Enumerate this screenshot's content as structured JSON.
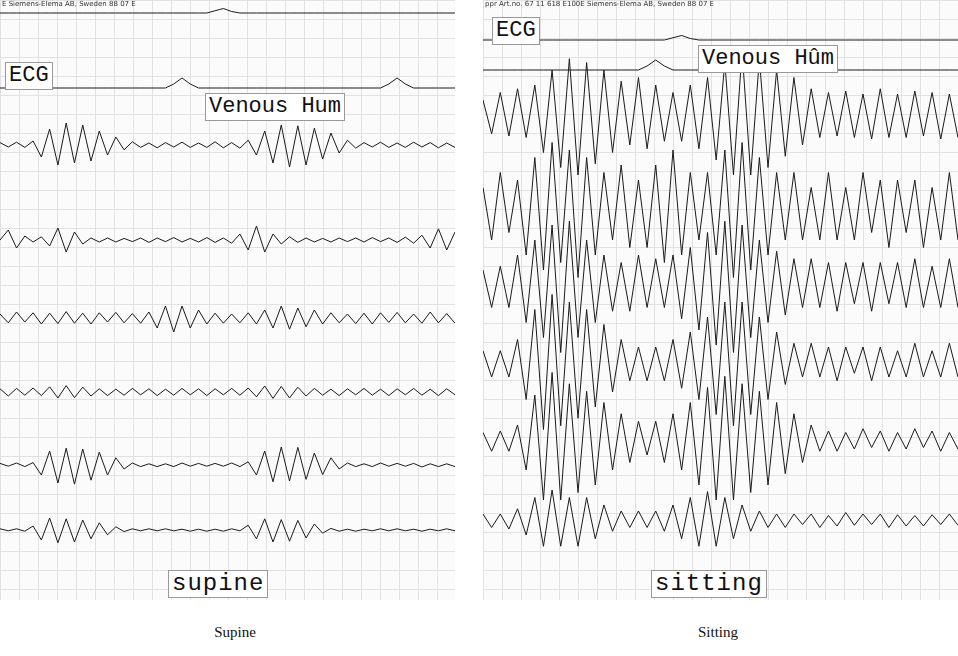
{
  "chart_data": [
    {
      "type": "line",
      "header": "E Siemens-Elema AB, Sweden   88 07 E",
      "title": "supine",
      "subtitle": "Supine",
      "annotations": [
        "ECG",
        "Venous Hum"
      ],
      "ylim": [
        -10,
        10
      ],
      "tick_labels": false,
      "grid": true,
      "color": "#1a1a1a",
      "series": [
        {
          "values": [
            0,
            0,
            0,
            0,
            0,
            0,
            0,
            0,
            0,
            0,
            0,
            0,
            0,
            0,
            0,
            0,
            0,
            0,
            0,
            0,
            0,
            0,
            0,
            0,
            0,
            0,
            1.5,
            3,
            1,
            0,
            0,
            0,
            0,
            0,
            0,
            0,
            0,
            0,
            0,
            0,
            0,
            0,
            0,
            0,
            0,
            0,
            0,
            0,
            0,
            0,
            0,
            0,
            0,
            0,
            0,
            0
          ]
        },
        {
          "values": [
            0,
            0,
            0,
            0,
            0,
            0,
            0,
            0,
            0,
            0,
            0,
            0,
            0,
            0,
            0,
            0,
            0,
            0,
            0,
            0,
            0,
            2,
            5,
            2,
            0,
            0,
            0,
            0,
            0,
            0,
            0,
            0,
            0,
            0,
            0,
            0,
            0,
            0,
            0,
            0,
            0,
            0,
            0,
            0,
            0,
            0,
            0,
            2,
            5,
            2,
            0,
            0,
            0,
            0,
            0,
            0
          ]
        },
        {
          "values": [
            0.6,
            -0.5,
            0.7,
            -0.6,
            1,
            -3,
            4,
            -5,
            5.5,
            -4.5,
            5,
            -4,
            3.5,
            -2.5,
            2,
            -1.2,
            0.8,
            -0.6,
            0.5,
            -0.7,
            0.6,
            -0.5,
            0.7,
            -0.6,
            0.5,
            -0.6,
            0.8,
            -0.7,
            0.6,
            -0.8,
            1.2,
            -2.5,
            3.5,
            -4.5,
            5,
            -5.5,
            4.8,
            -5,
            4.2,
            -3.5,
            3,
            -2,
            1.2,
            -0.8,
            0.6,
            -0.5,
            0.7,
            -0.6,
            0.5,
            -0.6,
            0.7,
            -0.5,
            0.6,
            -0.7,
            0.5,
            -0.6
          ]
        },
        {
          "values": [
            0,
            2.5,
            -2,
            1,
            -0.5,
            0.8,
            -1.5,
            3,
            -3,
            2,
            -1,
            0.5,
            -0.5,
            0.5,
            -0.5,
            0.4,
            -0.4,
            0.5,
            -0.6,
            0.5,
            -0.4,
            0.6,
            -0.5,
            0.4,
            -0.5,
            0.6,
            -0.6,
            0.5,
            -0.8,
            1.5,
            -2.5,
            3.5,
            -3,
            1.5,
            -1,
            0.8,
            -0.6,
            0.5,
            -0.5,
            0.4,
            -0.5,
            0.5,
            -0.4,
            0.5,
            -0.5,
            0.6,
            -0.4,
            0.5,
            -0.6,
            0.7,
            -0.8,
            1.2,
            -2,
            2.8,
            -2.5,
            2
          ]
        },
        {
          "values": [
            1,
            -1.2,
            1.5,
            -1,
            1.3,
            -1.5,
            1.2,
            -1.4,
            1.6,
            -1.3,
            1.2,
            -1.5,
            1.3,
            -1,
            1.4,
            -1.2,
            1.1,
            -1.3,
            1.5,
            -2.5,
            3,
            -3.5,
            3,
            -2.5,
            2,
            -1.5,
            1.2,
            -1.3,
            1,
            -1.2,
            1.3,
            -1.5,
            2,
            -2.5,
            3,
            -2.8,
            2.5,
            -2.2,
            2,
            -1.5,
            1.3,
            -1.2,
            1,
            -1.4,
            1.2,
            -1.5,
            1.3,
            -1.1,
            1.4,
            -1.2,
            1,
            -1.3,
            1.5,
            -1.2,
            1.1,
            -1.3
          ]
        },
        {
          "values": [
            0.8,
            -1,
            0.9,
            -0.8,
            1,
            -0.9,
            1.3,
            -1.5,
            1.6,
            -1.4,
            1.2,
            -1,
            0.8,
            -0.9,
            0.7,
            -0.8,
            0.9,
            -0.7,
            0.8,
            -0.9,
            0.7,
            -0.8,
            0.9,
            -0.7,
            0.8,
            -0.9,
            0.8,
            -0.7,
            0.9,
            -0.8,
            1,
            -1.2,
            1.5,
            -1.6,
            1.4,
            -1.5,
            1.2,
            -1,
            0.9,
            -0.8,
            0.7,
            -0.9,
            0.8,
            -0.7,
            0.9,
            -0.8,
            0.7,
            -0.9,
            0.8,
            -0.7,
            0.9,
            -0.8,
            0.7,
            -0.9,
            0.8,
            -0.7
          ]
        },
        {
          "values": [
            0.4,
            -0.3,
            0.5,
            -0.4,
            0.6,
            -2.5,
            3.5,
            -4.5,
            4.2,
            -4.8,
            4,
            -3.8,
            3.2,
            -2.5,
            1.8,
            -1,
            0.5,
            -0.4,
            0.3,
            -0.4,
            0.3,
            -0.4,
            0.5,
            -0.3,
            0.4,
            -0.3,
            0.4,
            -0.3,
            0.5,
            -0.4,
            0.8,
            -2.5,
            3.5,
            -4.2,
            4.5,
            -4,
            4.4,
            -3.6,
            3,
            -2.4,
            1.8,
            -1,
            0.5,
            -0.4,
            0.3,
            -0.4,
            0.5,
            -0.3,
            0.4,
            -0.3,
            0.4,
            -0.5,
            0.3,
            -0.4,
            0.3,
            -0.4
          ]
        },
        {
          "values": [
            0.3,
            -0.2,
            0.3,
            -0.3,
            1,
            -2.5,
            3,
            -3.2,
            2.8,
            -3,
            2.5,
            -2.2,
            1.8,
            -1.2,
            0.8,
            -0.4,
            0.3,
            -0.2,
            0.3,
            -0.2,
            0.3,
            -0.2,
            0.2,
            -0.3,
            0.2,
            -0.3,
            0.2,
            -0.3,
            0.3,
            -0.2,
            1.2,
            -2.2,
            2.8,
            -3,
            2.6,
            -2.8,
            2.4,
            -2,
            1.5,
            -0.8,
            0.4,
            -0.3,
            0.2,
            -0.3,
            0.2,
            -0.2,
            0.3,
            -0.2,
            0.3,
            -0.2,
            0.2,
            -0.3,
            0.2,
            -0.2,
            0.3,
            -0.2
          ]
        }
      ]
    },
    {
      "type": "line",
      "header": "ppr Art.no. 67 11 618 E100E Siemens-Elema AB, Sweden   88 07 E",
      "title": "sitting",
      "subtitle": "Sitting",
      "annotations": [
        "ECG",
        "Venous Hûm"
      ],
      "ylim": [
        -10,
        10
      ],
      "tick_labels": false,
      "grid": true,
      "color": "#1a1a1a",
      "series": [
        {
          "values": [
            0,
            0,
            0,
            0,
            0,
            0,
            0,
            0,
            0,
            0,
            0,
            0,
            0,
            0,
            0,
            0,
            0,
            0,
            0,
            0,
            0,
            0,
            1.5,
            3,
            1,
            0,
            0,
            0,
            0,
            0,
            0,
            0,
            0,
            0,
            0,
            0,
            0,
            0,
            0,
            0,
            0,
            0,
            0,
            0,
            0,
            0,
            0,
            0,
            0,
            0,
            0,
            0,
            0,
            0,
            0,
            0
          ]
        },
        {
          "values": [
            0,
            0,
            0,
            0,
            0,
            0,
            0,
            0,
            0,
            0,
            0,
            0,
            0,
            0,
            0,
            0,
            0,
            0,
            0,
            2,
            5,
            2,
            0,
            0,
            0,
            0,
            0,
            0,
            0,
            0,
            0,
            0,
            0,
            0,
            0,
            0,
            0,
            0,
            0,
            0,
            0,
            0,
            0,
            0,
            0,
            0,
            0,
            0,
            0,
            0,
            0,
            0,
            0,
            0,
            0,
            0
          ]
        },
        {
          "values": [
            2,
            -2.5,
            3,
            -2.8,
            3.5,
            -3,
            4,
            -5,
            6,
            -7,
            7.5,
            -8,
            7,
            -6.5,
            6,
            -5,
            4.5,
            -4,
            5,
            -4.5,
            4,
            -3.5,
            3,
            -3.5,
            4,
            -4.5,
            5,
            -6,
            7,
            -8,
            8.5,
            -8,
            7.5,
            -7,
            6,
            -5.5,
            5,
            -4,
            3.5,
            -3,
            3,
            -2.8,
            3.2,
            -3,
            2.8,
            -3.2,
            3.5,
            -3,
            2.8,
            -3,
            3.2,
            -2.8,
            3,
            -3.2,
            2.8,
            -3
          ]
        },
        {
          "values": [
            3,
            -4,
            5,
            -3,
            4,
            -6,
            7,
            -8,
            9,
            -7,
            8,
            -9,
            7,
            -6,
            5,
            -4,
            6,
            -5,
            4,
            -5,
            6,
            -7,
            8,
            -6,
            5,
            -4,
            5,
            -6,
            8,
            -9,
            9,
            -8,
            7,
            -6,
            5,
            -4,
            5,
            -4,
            3,
            -4,
            5,
            -4,
            3,
            -4,
            5,
            -3,
            4,
            -5,
            4,
            -3,
            4,
            -5,
            3,
            -4,
            5,
            -4
          ]
        },
        {
          "values": [
            2,
            -3,
            2.5,
            -3,
            4,
            -5,
            6,
            -7,
            8,
            -9,
            8.5,
            -7,
            6,
            -5,
            4,
            -3.5,
            3,
            -3.5,
            4,
            -3,
            3.5,
            -3,
            4,
            -4.5,
            5,
            -6,
            7,
            -8,
            8.5,
            -9,
            8,
            -7,
            6,
            -5,
            4.5,
            -4,
            3.5,
            -3,
            3.5,
            -3,
            3,
            -3.5,
            3,
            -2.5,
            3,
            -3.5,
            3,
            -2.5,
            3,
            -3,
            3.5,
            -3,
            2.5,
            -3,
            3.5,
            -3
          ]
        },
        {
          "values": [
            1.5,
            -2,
            1.5,
            -2,
            3,
            -5,
            7,
            -9,
            9,
            -8.5,
            8,
            -7.5,
            7,
            -6,
            5,
            -4,
            3,
            -2.5,
            2,
            -2.5,
            2,
            -2.5,
            3,
            -3.5,
            4,
            -5,
            6,
            -7,
            8,
            -8.5,
            8,
            -7,
            6,
            -5,
            4,
            -3,
            2.5,
            -2,
            2.5,
            -2,
            2,
            -2.5,
            2,
            -1.5,
            2,
            -2.5,
            2,
            -2,
            1.5,
            -2,
            2.5,
            -2,
            1.5,
            -2,
            2.5,
            -2
          ]
        },
        {
          "values": [
            1,
            -1.5,
            1.2,
            -1.5,
            2,
            -4,
            6,
            -8,
            9,
            -8,
            7.5,
            -7,
            6.5,
            -6,
            5,
            -4,
            3.5,
            -3,
            2.5,
            -2,
            2.5,
            -3,
            3.5,
            -4,
            5,
            -6,
            7,
            -8,
            8.5,
            -8,
            7.5,
            -7,
            6.5,
            -6,
            5,
            -4.5,
            3.5,
            -3,
            2,
            -1.5,
            1.2,
            -1.5,
            1,
            -1.2,
            1.5,
            -1,
            1.2,
            -1.5,
            1,
            -1.2,
            1.5,
            -1,
            1.2,
            -1.5,
            1,
            -1.2
          ]
        },
        {
          "values": [
            0.8,
            -1,
            0.8,
            -1.2,
            1.5,
            -2,
            3,
            -3.5,
            4,
            -3.5,
            3,
            -3.5,
            3,
            -2.5,
            2,
            -1.5,
            1.2,
            -1,
            1.2,
            -1,
            1.2,
            -1.5,
            2,
            -2.5,
            3,
            -3.5,
            3.8,
            -3.5,
            3,
            -2.5,
            2,
            -1.5,
            1.2,
            -1,
            0.8,
            -1,
            0.8,
            -0.6,
            0.8,
            -1,
            0.6,
            -0.8,
            1,
            -0.7,
            0.8,
            -0.6,
            0.8,
            -1,
            0.7,
            -0.8,
            0.6,
            -0.8,
            0.7,
            -0.6,
            0.8,
            -0.7
          ]
        }
      ]
    }
  ]
}
